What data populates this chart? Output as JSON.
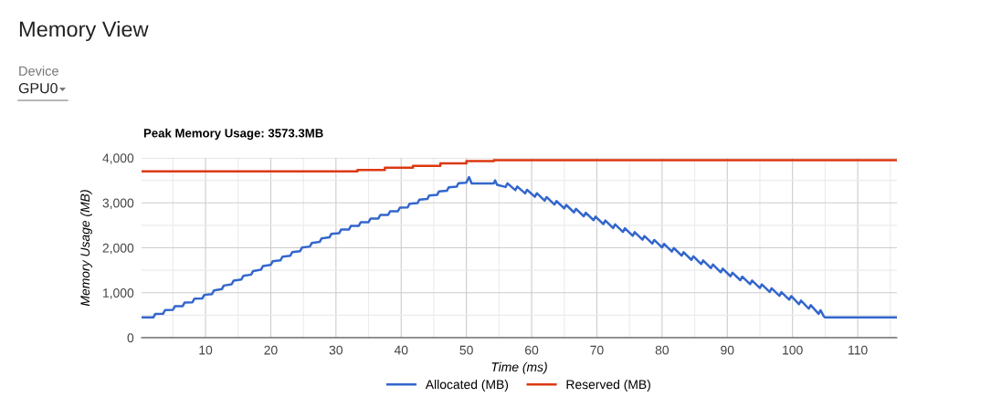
{
  "chart_data": {
    "type": "line",
    "title": "Memory View",
    "subtitle": "Peak Memory Usage: 3573.3MB",
    "annotations": [
      "Device",
      "GPU0"
    ],
    "xlabel": "Time (ms)",
    "ylabel": "Memory Usage (MB)",
    "xlim": [
      0.2,
      116
    ],
    "ylim": [
      0,
      4000
    ],
    "xticks": [
      {
        "value": 5,
        "label": null
      },
      10,
      {
        "value": 15,
        "label": null
      },
      20,
      {
        "value": 25,
        "label": null
      },
      30,
      {
        "value": 35,
        "label": null
      },
      40,
      {
        "value": 45,
        "label": null
      },
      50,
      {
        "value": 55,
        "label": null
      },
      60,
      {
        "value": 65,
        "label": null
      },
      70,
      {
        "value": 75,
        "label": null
      },
      80,
      {
        "value": 85,
        "label": null
      },
      90,
      {
        "value": 95,
        "label": null
      },
      100,
      {
        "value": 105,
        "label": null
      },
      110,
      {
        "value": 115,
        "label": null
      }
    ],
    "yticks": [
      {
        "value": 0,
        "label": "0"
      },
      {
        "value": 500,
        "label": null
      },
      {
        "value": 1000,
        "label": "1,000"
      },
      {
        "value": 1500,
        "label": null
      },
      {
        "value": 2000,
        "label": "2,000"
      },
      {
        "value": 2500,
        "label": null
      },
      {
        "value": 3000,
        "label": "3,000"
      },
      {
        "value": 3500,
        "label": null
      },
      {
        "value": 4000,
        "label": "4,000"
      }
    ],
    "grid": true,
    "legend": "bottom",
    "marker": "none",
    "line_style": "solid",
    "series": [
      {
        "name": "Allocated (MB)",
        "color": "#3366cc",
        "x": [
          0.2,
          2,
          2.3,
          3.5,
          3.8,
          5,
          5.3,
          6.5,
          6.8,
          8,
          8.3,
          9.5,
          9.8,
          11,
          11.3,
          12.5,
          12.8,
          14,
          14.3,
          15.5,
          15.8,
          17,
          17.3,
          18.5,
          18.8,
          20,
          20.3,
          21.5,
          21.8,
          23,
          23.3,
          24.5,
          24.8,
          26,
          26.3,
          27.5,
          27.8,
          29,
          29.3,
          30.5,
          30.8,
          32,
          32.3,
          33.5,
          33.8,
          35,
          35.3,
          36.5,
          36.8,
          38,
          38.3,
          39.5,
          39.8,
          41,
          41.3,
          42.5,
          42.8,
          44,
          44.3,
          45.5,
          45.8,
          47,
          47.3,
          48.5,
          48.8,
          50,
          50.4,
          50.8,
          54.2,
          54.4,
          54.7,
          56,
          56.3,
          57.5,
          57.8,
          59,
          59.3,
          60.5,
          60.8,
          62,
          62.3,
          63.5,
          63.8,
          65,
          65.3,
          66.5,
          66.8,
          68,
          68.3,
          69.5,
          69.8,
          71,
          71.3,
          72.5,
          72.8,
          74,
          74.3,
          75.5,
          75.8,
          77,
          77.3,
          78.5,
          78.8,
          80,
          80.3,
          81.5,
          81.8,
          83,
          83.3,
          84.5,
          84.8,
          86,
          86.3,
          87.5,
          87.8,
          89,
          89.3,
          90.5,
          90.8,
          92,
          92.3,
          93.5,
          93.8,
          95,
          95.3,
          96.5,
          96.8,
          98,
          98.3,
          99.5,
          99.8,
          101,
          101.3,
          102.5,
          102.8,
          104,
          104.3,
          104.8,
          105,
          116
        ],
        "values": [
          450,
          450,
          530,
          534,
          614,
          619,
          699,
          703,
          783,
          788,
          868,
          872,
          952,
          972,
          1052,
          1080,
          1160,
          1188,
          1268,
          1296,
          1376,
          1404,
          1484,
          1512,
          1592,
          1620,
          1700,
          1722,
          1802,
          1824,
          1904,
          1926,
          2006,
          2028,
          2108,
          2130,
          2210,
          2232,
          2312,
          2327,
          2407,
          2408,
          2488,
          2489,
          2569,
          2570,
          2650,
          2651,
          2731,
          2732,
          2812,
          2813,
          2893,
          2901,
          2981,
          2993,
          3073,
          3084,
          3164,
          3176,
          3256,
          3267,
          3347,
          3359,
          3439,
          3450,
          3573,
          3430,
          3430,
          3500,
          3400,
          3353,
          3433,
          3282,
          3362,
          3210,
          3290,
          3134,
          3214,
          3048,
          3128,
          2961,
          3041,
          2874,
          2954,
          2787,
          2867,
          2701,
          2781,
          2614,
          2694,
          2527,
          2607,
          2440,
          2520,
          2354,
          2434,
          2267,
          2347,
          2180,
          2260,
          2094,
          2174,
          2007,
          2087,
          1915,
          1995,
          1823,
          1903,
          1731,
          1811,
          1639,
          1719,
          1548,
          1628,
          1456,
          1536,
          1366,
          1446,
          1279,
          1359,
          1192,
          1272,
          1106,
          1186,
          1019,
          1099,
          932,
          1012,
          845,
          925,
          746,
          826,
          645,
          725,
          530,
          610,
          476,
          450,
          450
        ]
      },
      {
        "name": "Reserved (MB)",
        "color": "#dc3912",
        "type": "step",
        "x": [
          0.2,
          33.3,
          37.5,
          41.8,
          46.0,
          50.0,
          54.2,
          116
        ],
        "values": [
          3700,
          3730,
          3780,
          3820,
          3880,
          3930,
          3950,
          3950
        ]
      }
    ]
  }
}
